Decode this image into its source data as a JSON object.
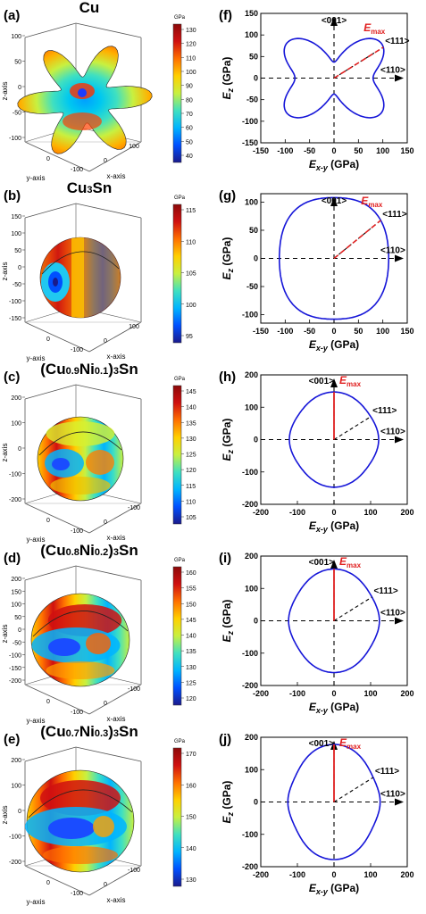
{
  "colorbar": {
    "unit": "GPa",
    "colors": [
      "#1a1a8c",
      "#0050ff",
      "#00b4ff",
      "#40e0c0",
      "#c8f040",
      "#ffd000",
      "#ff7000",
      "#d01010",
      "#8c0a0a"
    ]
  },
  "polar_common": {
    "ylabel": "E_z (GPa)",
    "xlabel": "E_x-y (GPa)",
    "line_color": "#1515d8",
    "emax_color": "#e02020",
    "dir_001": "<001>",
    "dir_110": "<110>",
    "dir_111": "<111>",
    "emax_base": "E",
    "emax_sub": "max"
  },
  "surface_common": {
    "xaxis_label": "x-axis",
    "yaxis_label": "y-axis",
    "zaxis_label": "z-axis"
  },
  "surfaces": [
    {
      "letter": "(a)",
      "title_parts": [
        [
          "Cu",
          false
        ]
      ],
      "cb_ticks": [
        "130",
        "120",
        "110",
        "100",
        "90",
        "80",
        "70",
        "60",
        "50",
        "40"
      ],
      "z_ticks": [
        "100",
        "50",
        "0",
        "-50",
        "-100"
      ],
      "x_ticks": [
        "0",
        "100"
      ],
      "y_ticks": [
        "0",
        "-100"
      ],
      "shape": "cu"
    },
    {
      "letter": "(b)",
      "title_parts": [
        [
          "Cu",
          false
        ],
        [
          "3",
          true
        ],
        [
          "Sn",
          false
        ]
      ],
      "cb_ticks": [
        "115",
        "110",
        "105",
        "100",
        "95"
      ],
      "z_ticks": [
        "150",
        "100",
        "50",
        "0",
        "-50",
        "-100",
        "-150"
      ],
      "x_ticks": [
        "0",
        "100"
      ],
      "y_ticks": [
        "0",
        "-100"
      ],
      "shape": "blob1"
    },
    {
      "letter": "(c)",
      "title_parts": [
        [
          "(Cu",
          false
        ],
        [
          "0.9",
          true
        ],
        [
          "Ni",
          false
        ],
        [
          "0.1",
          true
        ],
        [
          ")",
          false
        ],
        [
          "3",
          true
        ],
        [
          "Sn",
          false
        ]
      ],
      "cb_ticks": [
        "145",
        "140",
        "135",
        "130",
        "125",
        "120",
        "115",
        "110",
        "105"
      ],
      "z_ticks": [
        "200",
        "100",
        "0",
        "-100",
        "-200"
      ],
      "x_ticks": [
        "0",
        "-100"
      ],
      "y_ticks": [
        "0",
        "-100"
      ],
      "shape": "blob2"
    },
    {
      "letter": "(d)",
      "title_parts": [
        [
          "(Cu",
          false
        ],
        [
          "0.8",
          true
        ],
        [
          "Ni",
          false
        ],
        [
          "0.2",
          true
        ],
        [
          ")",
          false
        ],
        [
          "3",
          true
        ],
        [
          "Sn",
          false
        ]
      ],
      "cb_ticks": [
        "160",
        "155",
        "150",
        "145",
        "140",
        "135",
        "130",
        "125",
        "120"
      ],
      "z_ticks": [
        "200",
        "150",
        "100",
        "50",
        "0",
        "-50",
        "-100",
        "-150",
        "-200"
      ],
      "x_ticks": [
        "0",
        "-100"
      ],
      "y_ticks": [
        "0",
        "-100"
      ],
      "shape": "blob3"
    },
    {
      "letter": "(e)",
      "title_parts": [
        [
          "(Cu",
          false
        ],
        [
          "0.7",
          true
        ],
        [
          "Ni",
          false
        ],
        [
          "0.3",
          true
        ],
        [
          ")",
          false
        ],
        [
          "3",
          true
        ],
        [
          "Sn",
          false
        ]
      ],
      "cb_ticks": [
        "170",
        "160",
        "150",
        "140",
        "130"
      ],
      "z_ticks": [
        "200",
        "100",
        "0",
        "-100",
        "-200"
      ],
      "x_ticks": [
        "0",
        "-100"
      ],
      "y_ticks": [
        "0",
        "-100"
      ],
      "shape": "blob4"
    }
  ],
  "chart_data": [
    {
      "type": "line",
      "panel": "(f)",
      "material": "Cu",
      "xlim": [
        -150,
        150
      ],
      "ylim": [
        -150,
        150
      ],
      "x_ticks": [
        "-150",
        "-100",
        "-50",
        "0",
        "50",
        "100",
        "150"
      ],
      "y_ticks": [
        "150",
        "100",
        "50",
        "0",
        "-50",
        "-100",
        "-150"
      ],
      "x_tick_values": [
        -150,
        -100,
        -50,
        0,
        50,
        100,
        150
      ],
      "y_tick_values": [
        150,
        100,
        50,
        0,
        -50,
        -100,
        -150
      ],
      "E_001": 37,
      "E_110": 80,
      "E_111": 132,
      "E_max": 132,
      "emax_direction": "111"
    },
    {
      "type": "line",
      "panel": "(g)",
      "material": "Cu3Sn",
      "xlim": [
        -150,
        150
      ],
      "ylim": [
        -115,
        115
      ],
      "x_ticks": [
        "-150",
        "-100",
        "-50",
        "0",
        "50",
        "100",
        "150"
      ],
      "y_ticks": [
        "100",
        "50",
        "0",
        "-50",
        "-100"
      ],
      "x_tick_values": [
        -150,
        -100,
        -50,
        0,
        50,
        100,
        150
      ],
      "y_tick_values": [
        100,
        50,
        0,
        -50,
        -100
      ],
      "E_001": 108,
      "E_110": 112,
      "E_111": 118,
      "E_max": 118,
      "emax_direction": "111"
    },
    {
      "type": "line",
      "panel": "(h)",
      "material": "(Cu0.9Ni0.1)3Sn",
      "xlim": [
        -200,
        200
      ],
      "ylim": [
        -200,
        200
      ],
      "x_ticks": [
        "-200",
        "-100",
        "0",
        "100",
        "200"
      ],
      "y_ticks": [
        "200",
        "100",
        "0",
        "-100",
        "-200"
      ],
      "x_tick_values": [
        -200,
        -100,
        0,
        100,
        200
      ],
      "y_tick_values": [
        200,
        100,
        0,
        -100,
        -200
      ],
      "E_001": 147,
      "E_110": 122,
      "E_111": 122,
      "E_max": 147,
      "emax_direction": "001"
    },
    {
      "type": "line",
      "panel": "(i)",
      "material": "(Cu0.8Ni0.2)3Sn",
      "xlim": [
        -200,
        200
      ],
      "ylim": [
        -200,
        200
      ],
      "x_ticks": [
        "-200",
        "-100",
        "0",
        "100",
        "200"
      ],
      "y_ticks": [
        "200",
        "100",
        "0",
        "-100",
        "-200"
      ],
      "x_tick_values": [
        -200,
        -100,
        0,
        100,
        200
      ],
      "y_tick_values": [
        200,
        100,
        0,
        -100,
        -200
      ],
      "E_001": 160,
      "E_110": 124,
      "E_111": 126,
      "E_max": 160,
      "emax_direction": "001"
    },
    {
      "type": "line",
      "panel": "(j)",
      "material": "(Cu0.7Ni0.3)3Sn",
      "xlim": [
        -200,
        200
      ],
      "ylim": [
        -200,
        200
      ],
      "x_ticks": [
        "-200",
        "-100",
        "0",
        "100",
        "200"
      ],
      "y_ticks": [
        "200",
        "100",
        "0",
        "-100",
        "-200"
      ],
      "x_tick_values": [
        -200,
        -100,
        0,
        100,
        200
      ],
      "y_tick_values": [
        200,
        100,
        0,
        -100,
        -200
      ],
      "E_001": 178,
      "E_110": 126,
      "E_111": 130,
      "E_max": 178,
      "emax_direction": "001"
    }
  ]
}
